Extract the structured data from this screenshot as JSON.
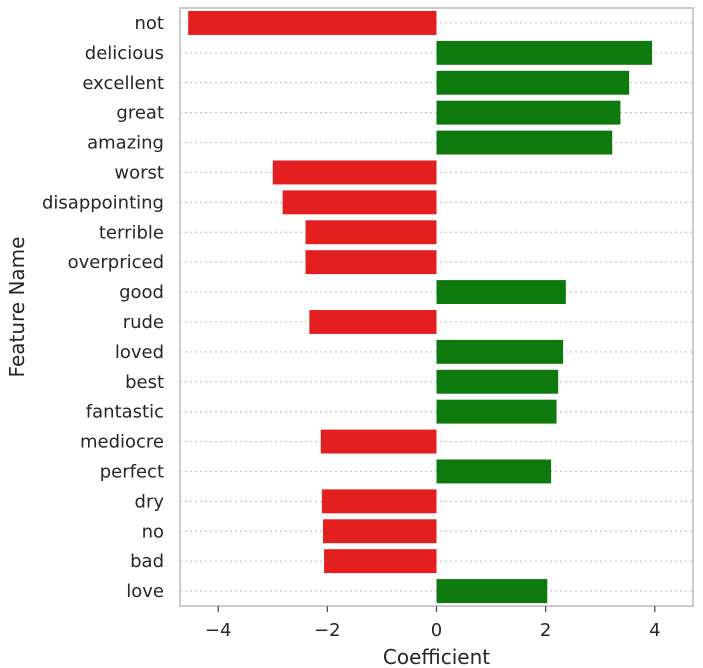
{
  "chart_data": {
    "type": "bar",
    "orientation": "horizontal",
    "title": "",
    "xlabel": "Coefficient",
    "ylabel": "Feature Name",
    "xlim": [
      -4.7,
      4.7
    ],
    "xticks": [
      -4,
      -2,
      0,
      2,
      4
    ],
    "xtick_labels": [
      "−4",
      "−2",
      "0",
      "2",
      "4"
    ],
    "grid": "horizontal dotted",
    "colors": {
      "positive": "#0e7a0d",
      "negative": "#e41f1f"
    },
    "categories": [
      "not",
      "delicious",
      "excellent",
      "great",
      "amazing",
      "worst",
      "disappointing",
      "terrible",
      "overpriced",
      "good",
      "rude",
      "loved",
      "best",
      "fantastic",
      "mediocre",
      "perfect",
      "dry",
      "no",
      "bad",
      "love"
    ],
    "values": [
      -4.55,
      3.95,
      3.53,
      3.37,
      3.22,
      -3.0,
      -2.82,
      -2.4,
      -2.4,
      2.37,
      -2.33,
      2.32,
      2.23,
      2.2,
      -2.12,
      2.1,
      -2.1,
      -2.08,
      -2.06,
      2.03
    ]
  }
}
